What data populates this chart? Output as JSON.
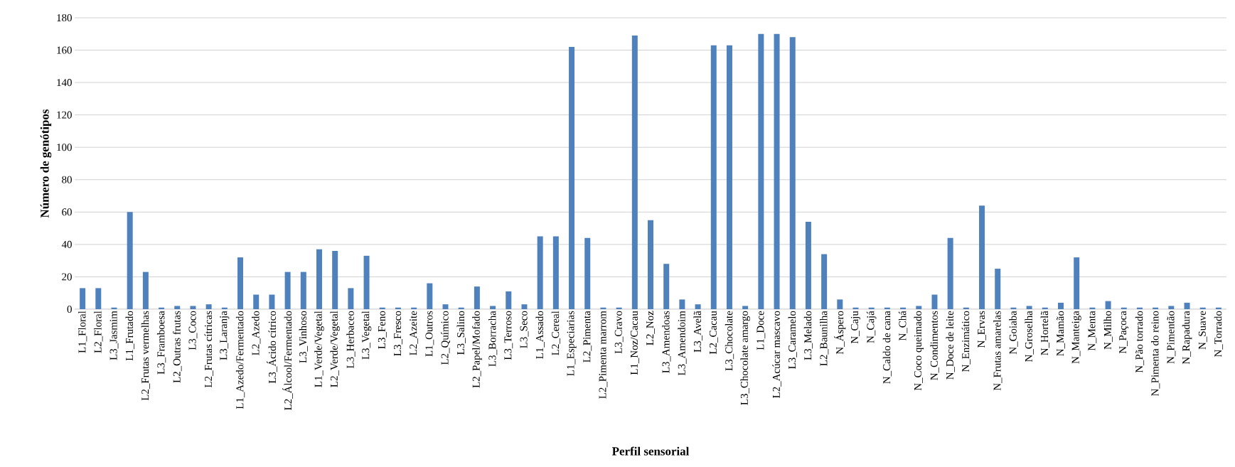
{
  "chart_data": {
    "type": "bar",
    "xlabel": "Perfil sensorial",
    "ylabel": "Número de genótipos",
    "categories": [
      "L1_Floral",
      "L2_Floral",
      "L3_Jasmim",
      "L1_Frutado",
      "L2_Frutas vermelhas",
      "L3_Framboesa",
      "L2_Outras frutas",
      "L3_Coco",
      "L2_Frutas cítricas",
      "L3_Laranja",
      "L1_Azedo/Fermentado",
      "L2_Azedo",
      "L3_Ácido cítrico",
      "L2_Álcool/Fermentado",
      "L3_Vinhoso",
      "L1_Verde/Vegetal",
      "L2_Verde/Vegetal",
      "L3_Herbaceo",
      "L3_Vegetal",
      "L3_Feno",
      "L3_Fresco",
      "L2_Azeite",
      "L1_Outros",
      "L2_Químico",
      "L3_Salino",
      "L2_Papel/Mofado",
      "L3_Borracha",
      "L3_Terroso",
      "L3_Seco",
      "L1_Assado",
      "L2_Cereal",
      "L1_Especiarias",
      "L2_Pimenta",
      "L2_Pimenta marrom",
      "L3_Cravo",
      "L1_Noz/Cacau",
      "L2_Noz",
      "L3_Amendoas",
      "L3_Amendoim",
      "L3_Avelã",
      "L2_Cacau",
      "L3_Chocolate",
      "L3_Chocolate amargo",
      "L1_Doce",
      "L2_Acúcar mascavo",
      "L3_Caramelo",
      "L3_Melado",
      "L2_Baunilha",
      "N_Áspero",
      "N_Caju",
      "N_Cajá",
      "N_Caldo de cana",
      "N_Chá",
      "N_Coco queimado",
      "N_Condimentos",
      "N_Doce de leite",
      "N_Enzimático",
      "N_Ervas",
      "N_Frutas amarelas",
      "N_Goiaba",
      "N_Groselha",
      "N_Hortelã",
      "N_Mamão",
      "N_Manteiga",
      "N_Menta",
      "N_Milho",
      "N_Paçoca",
      "N_Pão torrado",
      "N_Pimenta do reino",
      "N_Pimentão",
      "N_Rapadura",
      "N_Suave",
      "N_Torrado"
    ],
    "values": [
      13,
      13,
      1,
      60,
      23,
      1,
      2,
      2,
      3,
      1,
      32,
      9,
      9,
      23,
      23,
      37,
      36,
      13,
      33,
      1,
      1,
      1,
      16,
      3,
      1,
      14,
      2,
      11,
      3,
      45,
      45,
      162,
      44,
      1,
      1,
      169,
      55,
      28,
      6,
      3,
      163,
      163,
      2,
      170,
      170,
      168,
      54,
      34,
      6,
      1,
      1,
      1,
      1,
      2,
      9,
      44,
      1,
      64,
      25,
      1,
      2,
      1,
      4,
      32,
      1,
      5,
      1,
      1,
      1,
      2,
      4,
      1,
      1
    ],
    "color": "#4f81bd",
    "ylim": [
      0,
      180
    ],
    "yticks": [
      0,
      20,
      40,
      60,
      80,
      100,
      120,
      140,
      160,
      180
    ],
    "grid": "y"
  }
}
